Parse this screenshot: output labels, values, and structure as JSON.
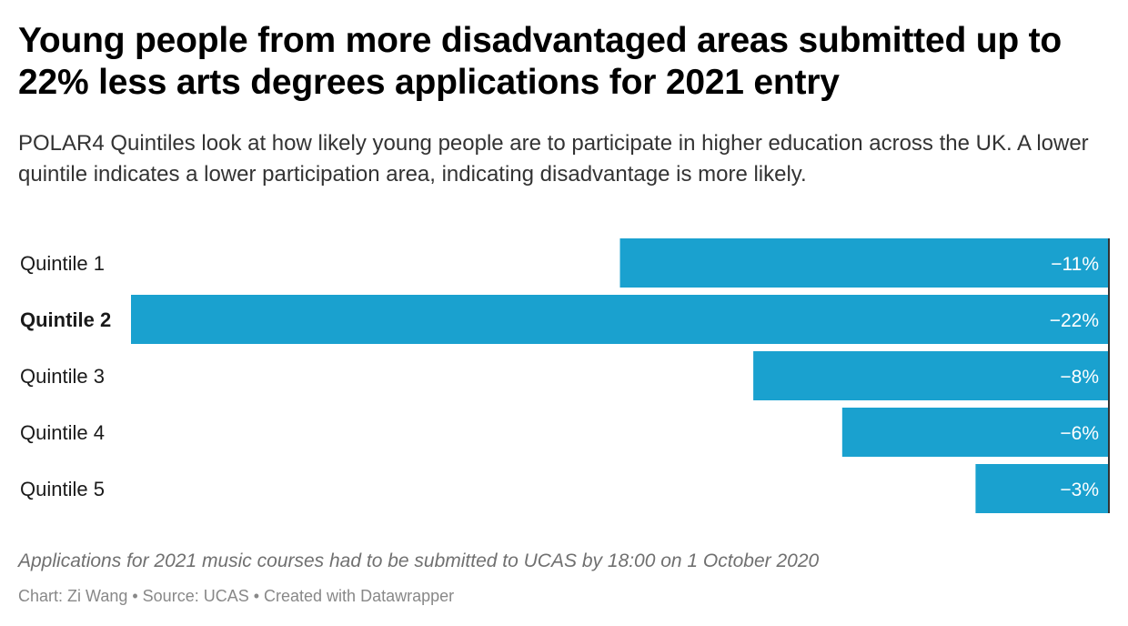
{
  "header": {
    "title": "Young people from more disadvantaged areas submitted up to 22% less arts degrees applications for 2021 entry",
    "subtitle": "POLAR4 Quintiles look at how likely young people are to participate in higher education across the UK. A lower quintile indicates a lower participation area, indicating disadvantage is more likely."
  },
  "chart_data": {
    "type": "bar",
    "orientation": "horizontal",
    "title": "Young people from more disadvantaged areas submitted up to 22% less arts degrees applications for 2021 entry",
    "categories": [
      "Quintile 1",
      "Quintile 2",
      "Quintile 3",
      "Quintile 4",
      "Quintile 5"
    ],
    "values": [
      -11,
      -22,
      -8,
      -6,
      -3
    ],
    "value_labels": [
      "−11%",
      "−22%",
      "−8%",
      "−6%",
      "−3%"
    ],
    "highlighted_category": "Quintile 2",
    "unit": "%",
    "xlim": [
      -22,
      0
    ],
    "grid": false,
    "legend": "none",
    "bar_color": "#1aa1cf",
    "label_color": "#ffffff",
    "axis_color": "#333333"
  },
  "footer": {
    "notes": "Applications for 2021 music courses had to be submitted to UCAS by 18:00 on 1 October 2020",
    "byline": "Chart: Zi Wang • Source: UCAS • Created with Datawrapper"
  }
}
